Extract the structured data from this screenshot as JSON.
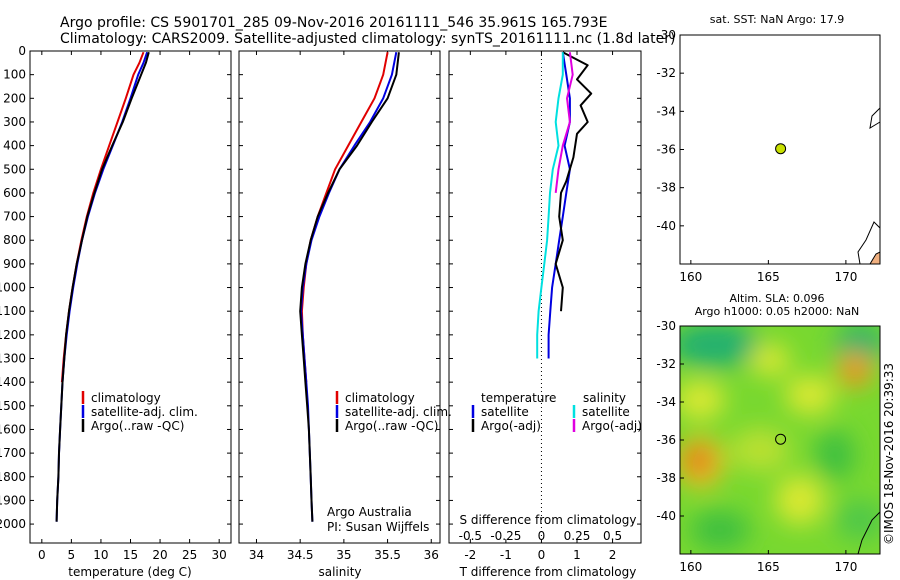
{
  "header": {
    "line1": "Argo profile: CS 5901701_285 09-Nov-2016 20161111_546 35.961S 165.793E",
    "line2": "Climatology: CARS2009. Satellite-adjusted climatology: synTS_20161111.nc (1.8d later)"
  },
  "colors": {
    "climatology": "#e00000",
    "satellite": "#0000e0",
    "argo": "#000000",
    "salinity_sat": "#00e0e0",
    "salinity_argo": "#e000e0",
    "float_marker": "#c8e000"
  },
  "side_text": "©IMOS 18-Nov-2016 20:39:33",
  "chart_data": [
    {
      "type": "line",
      "panel": "temperature",
      "xlabel": "temperature (deg C)",
      "xlim": [
        -2,
        32
      ],
      "xticks": [
        "0",
        "5",
        "10",
        "15",
        "20",
        "25",
        "30"
      ],
      "ylim": [
        2080,
        0
      ],
      "yticks": [
        "0",
        "100",
        "200",
        "300",
        "400",
        "500",
        "600",
        "700",
        "800",
        "900",
        "1000",
        "1100",
        "1200",
        "1300",
        "1400",
        "1500",
        "1600",
        "1700",
        "1800",
        "1900",
        "2000"
      ],
      "legend": [
        "climatology",
        "satellite-adj. clim.",
        "Argo(..raw -QC)"
      ],
      "series": [
        {
          "name": "climatology",
          "color": "#e00000",
          "points": [
            [
              17.2,
              5
            ],
            [
              16.5,
              50
            ],
            [
              15.5,
              100
            ],
            [
              14.2,
              200
            ],
            [
              12.8,
              300
            ],
            [
              11.4,
              400
            ],
            [
              10.0,
              500
            ],
            [
              8.7,
              600
            ],
            [
              7.6,
              700
            ],
            [
              6.7,
              800
            ],
            [
              5.9,
              900
            ],
            [
              5.2,
              1000
            ],
            [
              4.6,
              1100
            ],
            [
              4.1,
              1200
            ],
            [
              3.7,
              1300
            ],
            [
              3.4,
              1400
            ]
          ]
        },
        {
          "name": "satellite-adj. clim.",
          "color": "#0000e0",
          "points": [
            [
              17.8,
              5
            ],
            [
              17.2,
              50
            ],
            [
              16.3,
              100
            ],
            [
              15.0,
              200
            ],
            [
              13.6,
              300
            ],
            [
              12.0,
              400
            ],
            [
              10.4,
              500
            ],
            [
              9.0,
              600
            ],
            [
              7.8,
              700
            ],
            [
              6.8,
              800
            ],
            [
              6.0,
              900
            ],
            [
              5.3,
              1000
            ],
            [
              4.7,
              1100
            ],
            [
              4.2,
              1200
            ],
            [
              3.8,
              1300
            ],
            [
              3.5,
              1400
            ],
            [
              3.3,
              1500
            ],
            [
              3.1,
              1600
            ],
            [
              2.9,
              1700
            ],
            [
              2.8,
              1800
            ],
            [
              2.6,
              1900
            ],
            [
              2.5,
              1990
            ]
          ]
        },
        {
          "name": "Argo(..raw -QC)",
          "color": "#000000",
          "points": [
            [
              18.1,
              5
            ],
            [
              17.6,
              50
            ],
            [
              16.8,
              100
            ],
            [
              15.2,
              200
            ],
            [
              13.7,
              300
            ],
            [
              11.9,
              400
            ],
            [
              10.2,
              500
            ],
            [
              8.9,
              600
            ],
            [
              7.7,
              700
            ],
            [
              6.8,
              800
            ],
            [
              5.9,
              900
            ],
            [
              5.2,
              1000
            ],
            [
              4.6,
              1100
            ],
            [
              4.1,
              1200
            ],
            [
              3.8,
              1300
            ],
            [
              3.5,
              1400
            ],
            [
              3.3,
              1500
            ],
            [
              3.1,
              1600
            ],
            [
              2.9,
              1700
            ],
            [
              2.8,
              1800
            ],
            [
              2.6,
              1900
            ],
            [
              2.5,
              1990
            ]
          ]
        }
      ]
    },
    {
      "type": "line",
      "panel": "salinity",
      "xlabel": "salinity",
      "xlim": [
        33.8,
        36.1
      ],
      "xticks": [
        "34",
        "34.5",
        "35",
        "35.5",
        "36"
      ],
      "ylim": [
        2080,
        0
      ],
      "legend": [
        "climatology",
        "satellite-adj. clim.",
        "Argo(..raw -QC)"
      ],
      "annotation": [
        "Argo Australia",
        "PI: Susan Wijffels"
      ],
      "series": [
        {
          "name": "climatology",
          "color": "#e00000",
          "points": [
            [
              35.5,
              5
            ],
            [
              35.45,
              100
            ],
            [
              35.35,
              200
            ],
            [
              35.2,
              300
            ],
            [
              35.05,
              400
            ],
            [
              34.9,
              500
            ],
            [
              34.8,
              600
            ],
            [
              34.7,
              700
            ],
            [
              34.62,
              800
            ],
            [
              34.57,
              900
            ],
            [
              34.54,
              1000
            ],
            [
              34.52,
              1100
            ],
            [
              34.53,
              1200
            ],
            [
              34.55,
              1300
            ],
            [
              34.57,
              1400
            ]
          ]
        },
        {
          "name": "satellite-adj. clim.",
          "color": "#0000e0",
          "points": [
            [
              35.6,
              5
            ],
            [
              35.55,
              100
            ],
            [
              35.45,
              200
            ],
            [
              35.3,
              300
            ],
            [
              35.12,
              400
            ],
            [
              34.95,
              500
            ],
            [
              34.83,
              600
            ],
            [
              34.72,
              700
            ],
            [
              34.63,
              800
            ],
            [
              34.57,
              900
            ],
            [
              34.53,
              1000
            ],
            [
              34.51,
              1100
            ],
            [
              34.53,
              1200
            ],
            [
              34.55,
              1300
            ],
            [
              34.57,
              1400
            ],
            [
              34.59,
              1500
            ],
            [
              34.6,
              1600
            ],
            [
              34.61,
              1700
            ],
            [
              34.62,
              1800
            ],
            [
              34.63,
              1900
            ],
            [
              34.64,
              1990
            ]
          ]
        },
        {
          "name": "Argo(..raw -QC)",
          "color": "#000000",
          "points": [
            [
              35.63,
              5
            ],
            [
              35.6,
              100
            ],
            [
              35.5,
              200
            ],
            [
              35.32,
              300
            ],
            [
              35.15,
              400
            ],
            [
              34.95,
              500
            ],
            [
              34.82,
              600
            ],
            [
              34.7,
              700
            ],
            [
              34.62,
              800
            ],
            [
              34.56,
              900
            ],
            [
              34.52,
              1000
            ],
            [
              34.5,
              1100
            ],
            [
              34.52,
              1200
            ],
            [
              34.54,
              1300
            ],
            [
              34.56,
              1400
            ],
            [
              34.58,
              1500
            ],
            [
              34.6,
              1600
            ],
            [
              34.61,
              1700
            ],
            [
              34.62,
              1800
            ],
            [
              34.63,
              1900
            ],
            [
              34.64,
              1990
            ]
          ]
        }
      ]
    },
    {
      "type": "line",
      "panel": "difference",
      "xlabel_top": "S difference from climatology",
      "xticks_top": [
        "-0.5",
        "-0.25",
        "0",
        "0.25",
        "0.5"
      ],
      "xlabel": "T difference from climatology",
      "xlim": [
        -2.6,
        2.8
      ],
      "xticks": [
        "-2",
        "-1",
        "0",
        "1",
        "2"
      ],
      "ylim": [
        2080,
        0
      ],
      "legend": {
        "temperature": [
          "satellite",
          "Argo(-adj)"
        ],
        "salinity": [
          "satellite",
          "Argo(-adj)"
        ]
      },
      "legend_titles": [
        "temperature",
        "salinity"
      ],
      "series": [
        {
          "name": "satellite",
          "group": "temperature",
          "color": "#0000e0",
          "points": [
            [
              0.6,
              5
            ],
            [
              0.7,
              100
            ],
            [
              0.8,
              200
            ],
            [
              0.8,
              300
            ],
            [
              0.65,
              400
            ],
            [
              0.8,
              500
            ],
            [
              0.7,
              600
            ],
            [
              0.6,
              700
            ],
            [
              0.5,
              800
            ],
            [
              0.4,
              900
            ],
            [
              0.3,
              1000
            ],
            [
              0.25,
              1100
            ],
            [
              0.2,
              1200
            ],
            [
              0.2,
              1300
            ]
          ]
        },
        {
          "name": "Argo(-adj)",
          "group": "temperature",
          "color": "#000000",
          "points": [
            [
              0.6,
              5
            ],
            [
              1.3,
              60
            ],
            [
              1.0,
              120
            ],
            [
              1.4,
              180
            ],
            [
              1.1,
              230
            ],
            [
              1.3,
              300
            ],
            [
              1.0,
              350
            ],
            [
              0.9,
              450
            ],
            [
              0.7,
              550
            ],
            [
              0.55,
              600
            ],
            [
              0.5,
              700
            ],
            [
              0.6,
              800
            ],
            [
              0.4,
              900
            ],
            [
              0.6,
              1000
            ],
            [
              0.55,
              1100
            ]
          ]
        },
        {
          "name": "satellite",
          "group": "salinity",
          "color": "#00e0e0",
          "points": [
            [
              0.15,
              5
            ],
            [
              0.15,
              100
            ],
            [
              0.12,
              200
            ],
            [
              0.1,
              300
            ],
            [
              0.12,
              400
            ],
            [
              0.08,
              500
            ],
            [
              0.06,
              600
            ],
            [
              0.05,
              700
            ],
            [
              0.04,
              800
            ],
            [
              0.02,
              900
            ],
            [
              0.0,
              1000
            ],
            [
              -0.02,
              1100
            ],
            [
              -0.03,
              1200
            ],
            [
              -0.03,
              1300
            ]
          ]
        },
        {
          "name": "Argo(-adj)",
          "group": "salinity",
          "color": "#e000e0",
          "points": [
            [
              0.2,
              5
            ],
            [
              0.22,
              100
            ],
            [
              0.18,
              200
            ],
            [
              0.2,
              300
            ],
            [
              0.15,
              400
            ],
            [
              0.12,
              500
            ],
            [
              0.1,
              600
            ]
          ]
        }
      ]
    },
    {
      "type": "scatter",
      "panel": "sst-map",
      "title": "sat. SST: NaN Argo: 17.9",
      "xlim": [
        159.3,
        172.2
      ],
      "ylim": [
        -42,
        -30
      ],
      "xticks": [
        "160",
        "165",
        "170"
      ],
      "yticks": [
        "-30",
        "-32",
        "-34",
        "-36",
        "-38",
        "-40"
      ],
      "points": [
        [
          165.79,
          -35.96
        ]
      ]
    },
    {
      "type": "heatmap",
      "panel": "sla-map",
      "title": [
        "Altim. SLA: 0.096",
        "Argo h1000: 0.05 h2000: NaN"
      ],
      "xlim": [
        159.3,
        172.2
      ],
      "ylim": [
        -42,
        -30
      ],
      "xticks": [
        "160",
        "165",
        "170"
      ],
      "yticks": [
        "-30",
        "-32",
        "-34",
        "-36",
        "-38",
        "-40"
      ],
      "points": [
        [
          165.79,
          -35.96
        ]
      ]
    }
  ]
}
